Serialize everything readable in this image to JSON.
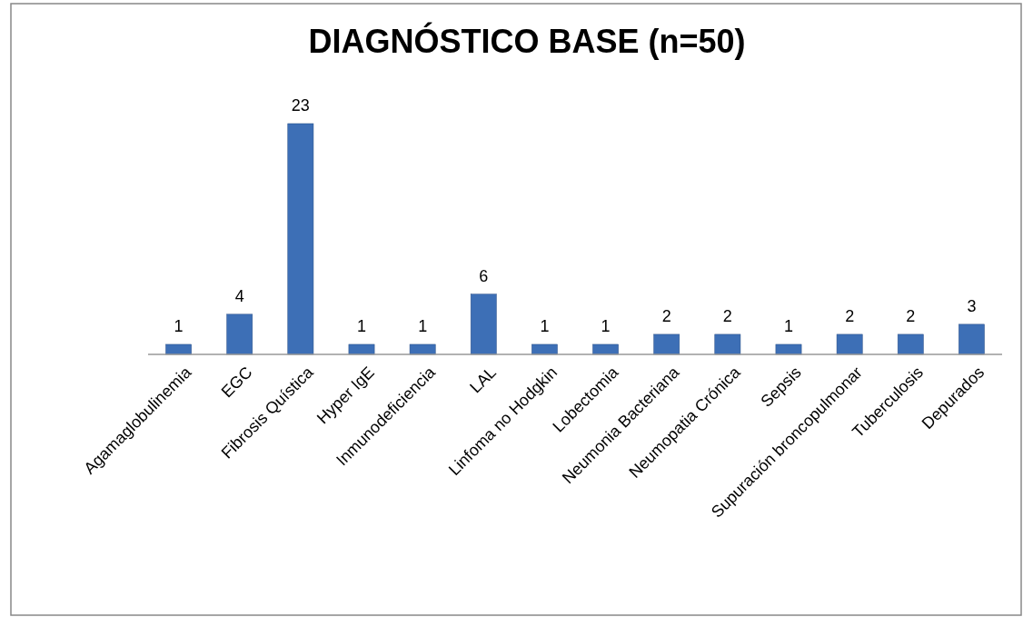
{
  "chart_data": {
    "type": "bar",
    "title": "DIAGNÓSTICO BASE (n=50)",
    "categories": [
      "Agamaglobulinemia",
      "EGC",
      "Fibrosis Quística",
      "Hyper IgE",
      "Inmunodeficiencia",
      "LAL",
      "Linfoma no Hodgkin",
      "Lobectomia",
      "Neumonia Bacteriana",
      "Neumopatia Crónica",
      "Sepsis",
      "Supuración broncopulmonar",
      "Tuberculosis",
      "Depurados"
    ],
    "values": [
      1,
      4,
      23,
      1,
      1,
      6,
      1,
      1,
      2,
      2,
      1,
      2,
      2,
      3
    ],
    "color": "#3d6fb6",
    "data_labels": true
  }
}
